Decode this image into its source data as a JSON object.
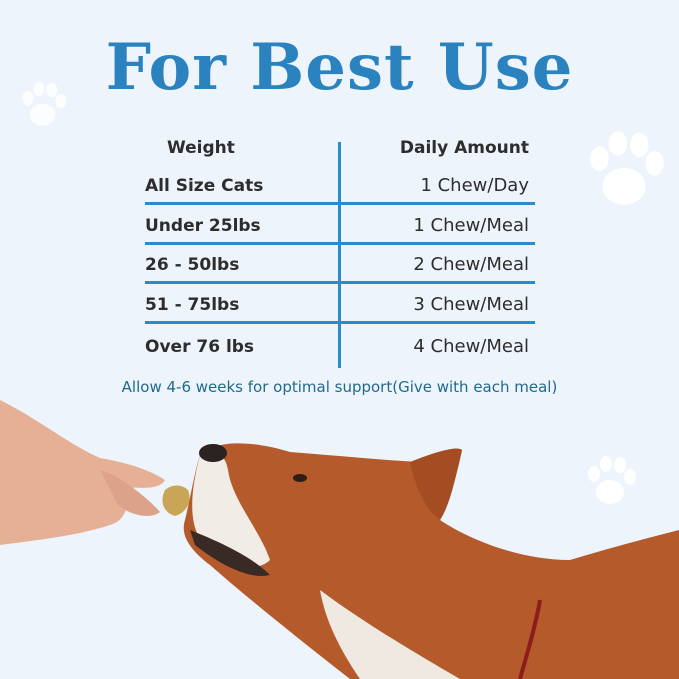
{
  "title": "For Best Use",
  "table": {
    "headers": {
      "weight": "Weight",
      "amount": "Daily Amount"
    },
    "rows": [
      {
        "weight": "All Size Cats",
        "amount": "1 Chew/Day"
      },
      {
        "weight": "Under 25lbs",
        "amount": "1 Chew/Meal"
      },
      {
        "weight": "26 - 50lbs",
        "amount": "2 Chew/Meal"
      },
      {
        "weight": "51 - 75lbs",
        "amount": "3 Chew/Meal"
      },
      {
        "weight": "Over 76 lbs",
        "amount": "4 Chew/Meal"
      }
    ]
  },
  "note": "Allow 4-6 weeks for optimal support(Give with each meal)",
  "colors": {
    "accent": "#2a82bf",
    "line": "#2a8bc9",
    "background": "#eef4fb"
  },
  "icons": [
    "paw-print-icon"
  ]
}
